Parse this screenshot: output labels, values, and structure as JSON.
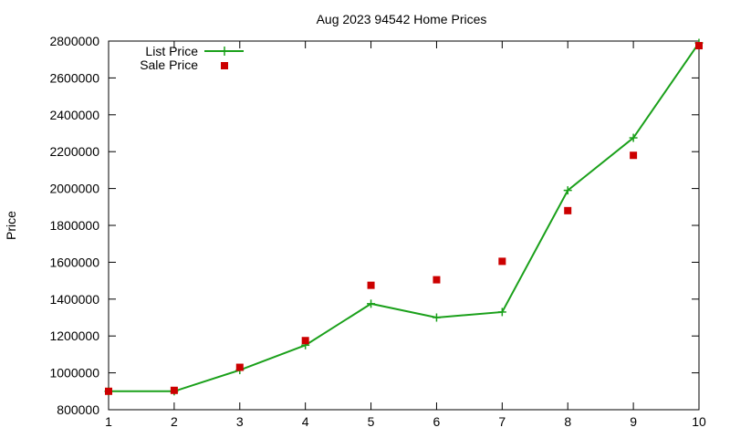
{
  "chart_data": {
    "type": "line",
    "title": "Aug 2023 94542 Home Prices",
    "xlabel": "",
    "ylabel": "Price",
    "x": [
      1,
      2,
      3,
      4,
      5,
      6,
      7,
      8,
      9,
      10
    ],
    "xlim": [
      1,
      10
    ],
    "ylim": [
      800000,
      2800000
    ],
    "yticks": [
      800000,
      1000000,
      1200000,
      1400000,
      1600000,
      1800000,
      2000000,
      2200000,
      2400000,
      2600000,
      2800000
    ],
    "xticks": [
      1,
      2,
      3,
      4,
      5,
      6,
      7,
      8,
      9,
      10
    ],
    "grid": false,
    "legend_position": "top-left",
    "series": [
      {
        "name": "List Price",
        "style": "lines+points",
        "marker": "plus",
        "color": "#1aa01a",
        "values": [
          900000,
          900000,
          1015000,
          1150000,
          1375000,
          1300000,
          1330000,
          1990000,
          2275000,
          2790000
        ]
      },
      {
        "name": "Sale Price",
        "style": "points",
        "marker": "square",
        "color": "#cc0000",
        "values": [
          900000,
          905000,
          1030000,
          1175000,
          1475000,
          1505000,
          1605000,
          1880000,
          2180000,
          2775000
        ]
      }
    ]
  }
}
